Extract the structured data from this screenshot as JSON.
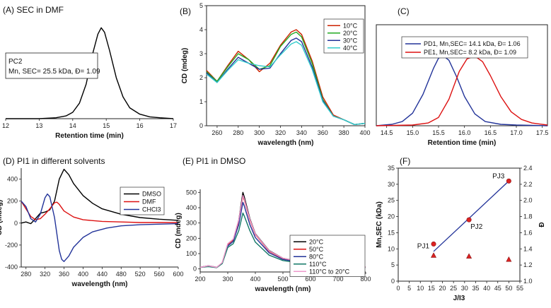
{
  "chart_data": [
    {
      "id": "A",
      "type": "line",
      "title": "(A) SEC in DMF",
      "xlabel": "Retention time (min)",
      "ylabel": "",
      "xlim": [
        12,
        17
      ],
      "xticks": [
        12,
        13,
        14,
        15,
        16,
        17
      ],
      "annotation": {
        "line1": "PC2",
        "line2": "Mn, SEC= 25.5 kDa, Đ= 1.09"
      },
      "series": [
        {
          "color": "#000000",
          "x": [
            12,
            13,
            13.5,
            13.8,
            14.0,
            14.2,
            14.4,
            14.6,
            14.75,
            14.85,
            14.95,
            15.1,
            15.3,
            15.5,
            15.7,
            16.0,
            16.3,
            16.6,
            17.0
          ],
          "y": [
            0.0,
            0.0,
            0.01,
            0.03,
            0.07,
            0.17,
            0.38,
            0.72,
            0.93,
            1.0,
            0.95,
            0.75,
            0.45,
            0.24,
            0.12,
            0.05,
            0.02,
            0.01,
            0.0
          ]
        }
      ]
    },
    {
      "id": "B",
      "type": "line",
      "title": "(B)",
      "xlabel": "wavelength (nm)",
      "ylabel": "CD (mdeg)",
      "xlim": [
        250,
        400
      ],
      "ylim": [
        0,
        5
      ],
      "xticks": [
        260,
        280,
        300,
        320,
        340,
        360,
        380,
        400
      ],
      "yticks": [
        0,
        1,
        2,
        3,
        4,
        5
      ],
      "legend": "top-right",
      "series": [
        {
          "name": "10°C",
          "color": "#cc2200",
          "x": [
            250,
            260,
            270,
            280,
            290,
            300,
            310,
            320,
            330,
            335,
            340,
            350,
            360,
            370,
            380,
            390,
            400
          ],
          "y": [
            2.3,
            1.85,
            2.5,
            3.1,
            2.75,
            2.25,
            2.6,
            3.35,
            3.9,
            4.0,
            3.8,
            2.7,
            1.2,
            0.45,
            0.25,
            0.05,
            0.1
          ]
        },
        {
          "name": "20°C",
          "color": "#22aa22",
          "x": [
            250,
            260,
            270,
            280,
            290,
            300,
            310,
            320,
            330,
            335,
            340,
            350,
            360,
            370,
            380,
            390,
            400
          ],
          "y": [
            2.25,
            1.85,
            2.45,
            3.0,
            2.75,
            2.35,
            2.5,
            3.3,
            3.8,
            3.9,
            3.7,
            2.6,
            1.1,
            0.4,
            0.25,
            0.05,
            0.1
          ]
        },
        {
          "name": "30°C",
          "color": "#223399",
          "x": [
            250,
            260,
            270,
            280,
            290,
            300,
            310,
            320,
            330,
            335,
            340,
            350,
            360,
            370,
            380,
            390,
            400
          ],
          "y": [
            2.2,
            1.8,
            2.35,
            2.85,
            2.6,
            2.35,
            2.4,
            3.0,
            3.55,
            3.65,
            3.5,
            2.45,
            1.05,
            0.4,
            0.25,
            0.05,
            0.1
          ]
        },
        {
          "name": "40°C",
          "color": "#33cccc",
          "x": [
            250,
            260,
            270,
            280,
            290,
            300,
            310,
            320,
            330,
            335,
            340,
            350,
            360,
            370,
            380,
            390,
            400
          ],
          "y": [
            2.15,
            1.8,
            2.3,
            2.75,
            2.6,
            2.5,
            2.45,
            2.95,
            3.4,
            3.5,
            3.35,
            2.35,
            1.0,
            0.4,
            0.25,
            0.05,
            0.1
          ]
        }
      ]
    },
    {
      "id": "C",
      "type": "line",
      "title": "(C)",
      "xlabel": "Retention time (min)",
      "ylabel": "",
      "xlim": [
        14.3,
        17.6
      ],
      "xticks": [
        14.5,
        15.0,
        15.5,
        16.0,
        16.5,
        17.0,
        17.5
      ],
      "legend": "top",
      "series": [
        {
          "name": "PD1, Mn,SEC= 14.1 kDa, Đ= 1.06",
          "color": "#223399",
          "x": [
            14.3,
            14.6,
            14.8,
            15.0,
            15.2,
            15.4,
            15.5,
            15.6,
            15.7,
            15.85,
            16.0,
            16.2,
            16.4,
            16.7,
            17.0,
            17.6
          ],
          "y": [
            0.0,
            0.02,
            0.06,
            0.18,
            0.45,
            0.82,
            0.97,
            1.0,
            0.94,
            0.7,
            0.42,
            0.17,
            0.06,
            0.02,
            0.01,
            0.0
          ]
        },
        {
          "name": "PE1, Mn,SEC= 8.2 kDa, Đ= 1.09",
          "color": "#dd1111",
          "x": [
            14.3,
            15.0,
            15.3,
            15.5,
            15.7,
            15.9,
            16.05,
            16.2,
            16.35,
            16.5,
            16.7,
            16.9,
            17.1,
            17.3,
            17.6
          ],
          "y": [
            0.0,
            0.01,
            0.04,
            0.12,
            0.38,
            0.78,
            0.96,
            1.0,
            0.92,
            0.72,
            0.42,
            0.2,
            0.09,
            0.04,
            0.01
          ]
        }
      ]
    },
    {
      "id": "D",
      "type": "line",
      "title": "(D) PI1 in different solvents",
      "xlabel": "wavelength (nm)",
      "ylabel": "CD (mdeg)",
      "xlim": [
        270,
        600
      ],
      "ylim": [
        -400,
        500
      ],
      "xticks": [
        280,
        320,
        360,
        400,
        440,
        480,
        520,
        560,
        600
      ],
      "yticks": [
        -400,
        -200,
        0,
        200,
        400
      ],
      "legend": "right",
      "series": [
        {
          "name": "DMSO",
          "color": "#000000",
          "x": [
            270,
            280,
            290,
            300,
            310,
            320,
            330,
            340,
            350,
            360,
            370,
            380,
            400,
            420,
            440,
            480,
            520,
            560,
            600
          ],
          "y": [
            0,
            10,
            -5,
            40,
            90,
            100,
            120,
            200,
            400,
            490,
            440,
            360,
            250,
            180,
            130,
            80,
            50,
            35,
            25
          ]
        },
        {
          "name": "DMF",
          "color": "#dd1111",
          "x": [
            270,
            280,
            290,
            300,
            310,
            320,
            330,
            340,
            345,
            350,
            360,
            380,
            400,
            440,
            480,
            520,
            600
          ],
          "y": [
            200,
            130,
            60,
            30,
            40,
            80,
            130,
            185,
            190,
            170,
            110,
            55,
            30,
            15,
            10,
            5,
            5
          ]
        },
        {
          "name": "CHCl3",
          "color": "#223399",
          "x": [
            270,
            280,
            290,
            300,
            310,
            320,
            325,
            330,
            340,
            350,
            355,
            360,
            370,
            380,
            400,
            420,
            450,
            480,
            520,
            560,
            600
          ],
          "y": [
            200,
            150,
            40,
            10,
            80,
            230,
            265,
            240,
            50,
            -250,
            -330,
            -350,
            -300,
            -220,
            -130,
            -80,
            -45,
            -25,
            -15,
            -10,
            -5
          ]
        }
      ]
    },
    {
      "id": "E",
      "type": "line",
      "title": "(E) PI1 in DMSO",
      "xlabel": "wavelength (nm)",
      "ylabel": "CD (mdeg)",
      "xlim": [
        200,
        800
      ],
      "ylim": [
        -20,
        520
      ],
      "xticks": [
        200,
        300,
        400,
        500,
        600,
        700,
        800
      ],
      "yticks": [
        0,
        100,
        200,
        300,
        400,
        500
      ],
      "legend": "right",
      "series": [
        {
          "name": "20°C",
          "color": "#000000",
          "x": [
            200,
            230,
            260,
            280,
            300,
            320,
            340,
            355,
            360,
            380,
            400,
            450,
            500,
            600,
            700,
            800
          ],
          "y": [
            10,
            20,
            10,
            40,
            160,
            190,
            320,
            500,
            470,
            330,
            230,
            120,
            70,
            35,
            20,
            12
          ]
        },
        {
          "name": "50°C",
          "color": "#dd1111",
          "x": [
            200,
            230,
            260,
            280,
            300,
            320,
            340,
            355,
            360,
            380,
            400,
            450,
            500,
            600,
            700,
            800
          ],
          "y": [
            10,
            20,
            10,
            40,
            160,
            190,
            310,
            475,
            450,
            320,
            225,
            115,
            68,
            34,
            20,
            12
          ]
        },
        {
          "name": "80°C",
          "color": "#223399",
          "x": [
            200,
            230,
            260,
            280,
            300,
            320,
            340,
            355,
            360,
            380,
            400,
            450,
            500,
            600,
            700,
            800
          ],
          "y": [
            10,
            20,
            10,
            38,
            150,
            180,
            290,
            435,
            410,
            290,
            205,
            105,
            62,
            32,
            18,
            11
          ]
        },
        {
          "name": "110°C",
          "color": "#117766",
          "x": [
            200,
            230,
            260,
            280,
            300,
            320,
            340,
            355,
            360,
            380,
            400,
            450,
            500,
            600,
            700,
            800
          ],
          "y": [
            10,
            15,
            8,
            35,
            140,
            165,
            250,
            365,
            345,
            250,
            175,
            90,
            55,
            28,
            16,
            10
          ]
        },
        {
          "name": "110°C to 20°C",
          "color": "#ee99cc",
          "x": [
            200,
            230,
            260,
            280,
            300,
            320,
            340,
            355,
            360,
            380,
            400,
            450,
            500,
            600,
            700,
            800
          ],
          "y": [
            10,
            20,
            10,
            42,
            165,
            195,
            320,
            480,
            455,
            325,
            228,
            118,
            70,
            35,
            20,
            12
          ]
        }
      ]
    },
    {
      "id": "F",
      "type": "scatter",
      "title": "(F)",
      "xlabel": "J/I3",
      "ylabel": "Mn,SEC (kDa)",
      "y2label": "Đ",
      "xlim": [
        0,
        55
      ],
      "ylim": [
        0,
        35
      ],
      "y2lim": [
        1.0,
        2.4
      ],
      "xticks": [
        0,
        5,
        10,
        15,
        20,
        25,
        30,
        35,
        40,
        45,
        50,
        55
      ],
      "yticks": [
        0,
        5,
        10,
        15,
        20,
        25,
        30,
        35
      ],
      "y2ticks": [
        1.0,
        1.2,
        1.4,
        1.6,
        1.8,
        2.0,
        2.2,
        2.4
      ],
      "points": [
        {
          "label": "PJ1",
          "x": 16,
          "y": 11.5
        },
        {
          "label": "PJ2",
          "x": 32,
          "y": 19.0
        },
        {
          "label": "PJ3",
          "x": 50,
          "y": 31.0
        }
      ],
      "dispersity": [
        {
          "x": 16,
          "y": 1.32
        },
        {
          "x": 32,
          "y": 1.31
        },
        {
          "x": 50,
          "y": 1.27
        }
      ],
      "fit": {
        "x": [
          16,
          50
        ],
        "y": [
          9.2,
          31.0
        ]
      }
    }
  ]
}
